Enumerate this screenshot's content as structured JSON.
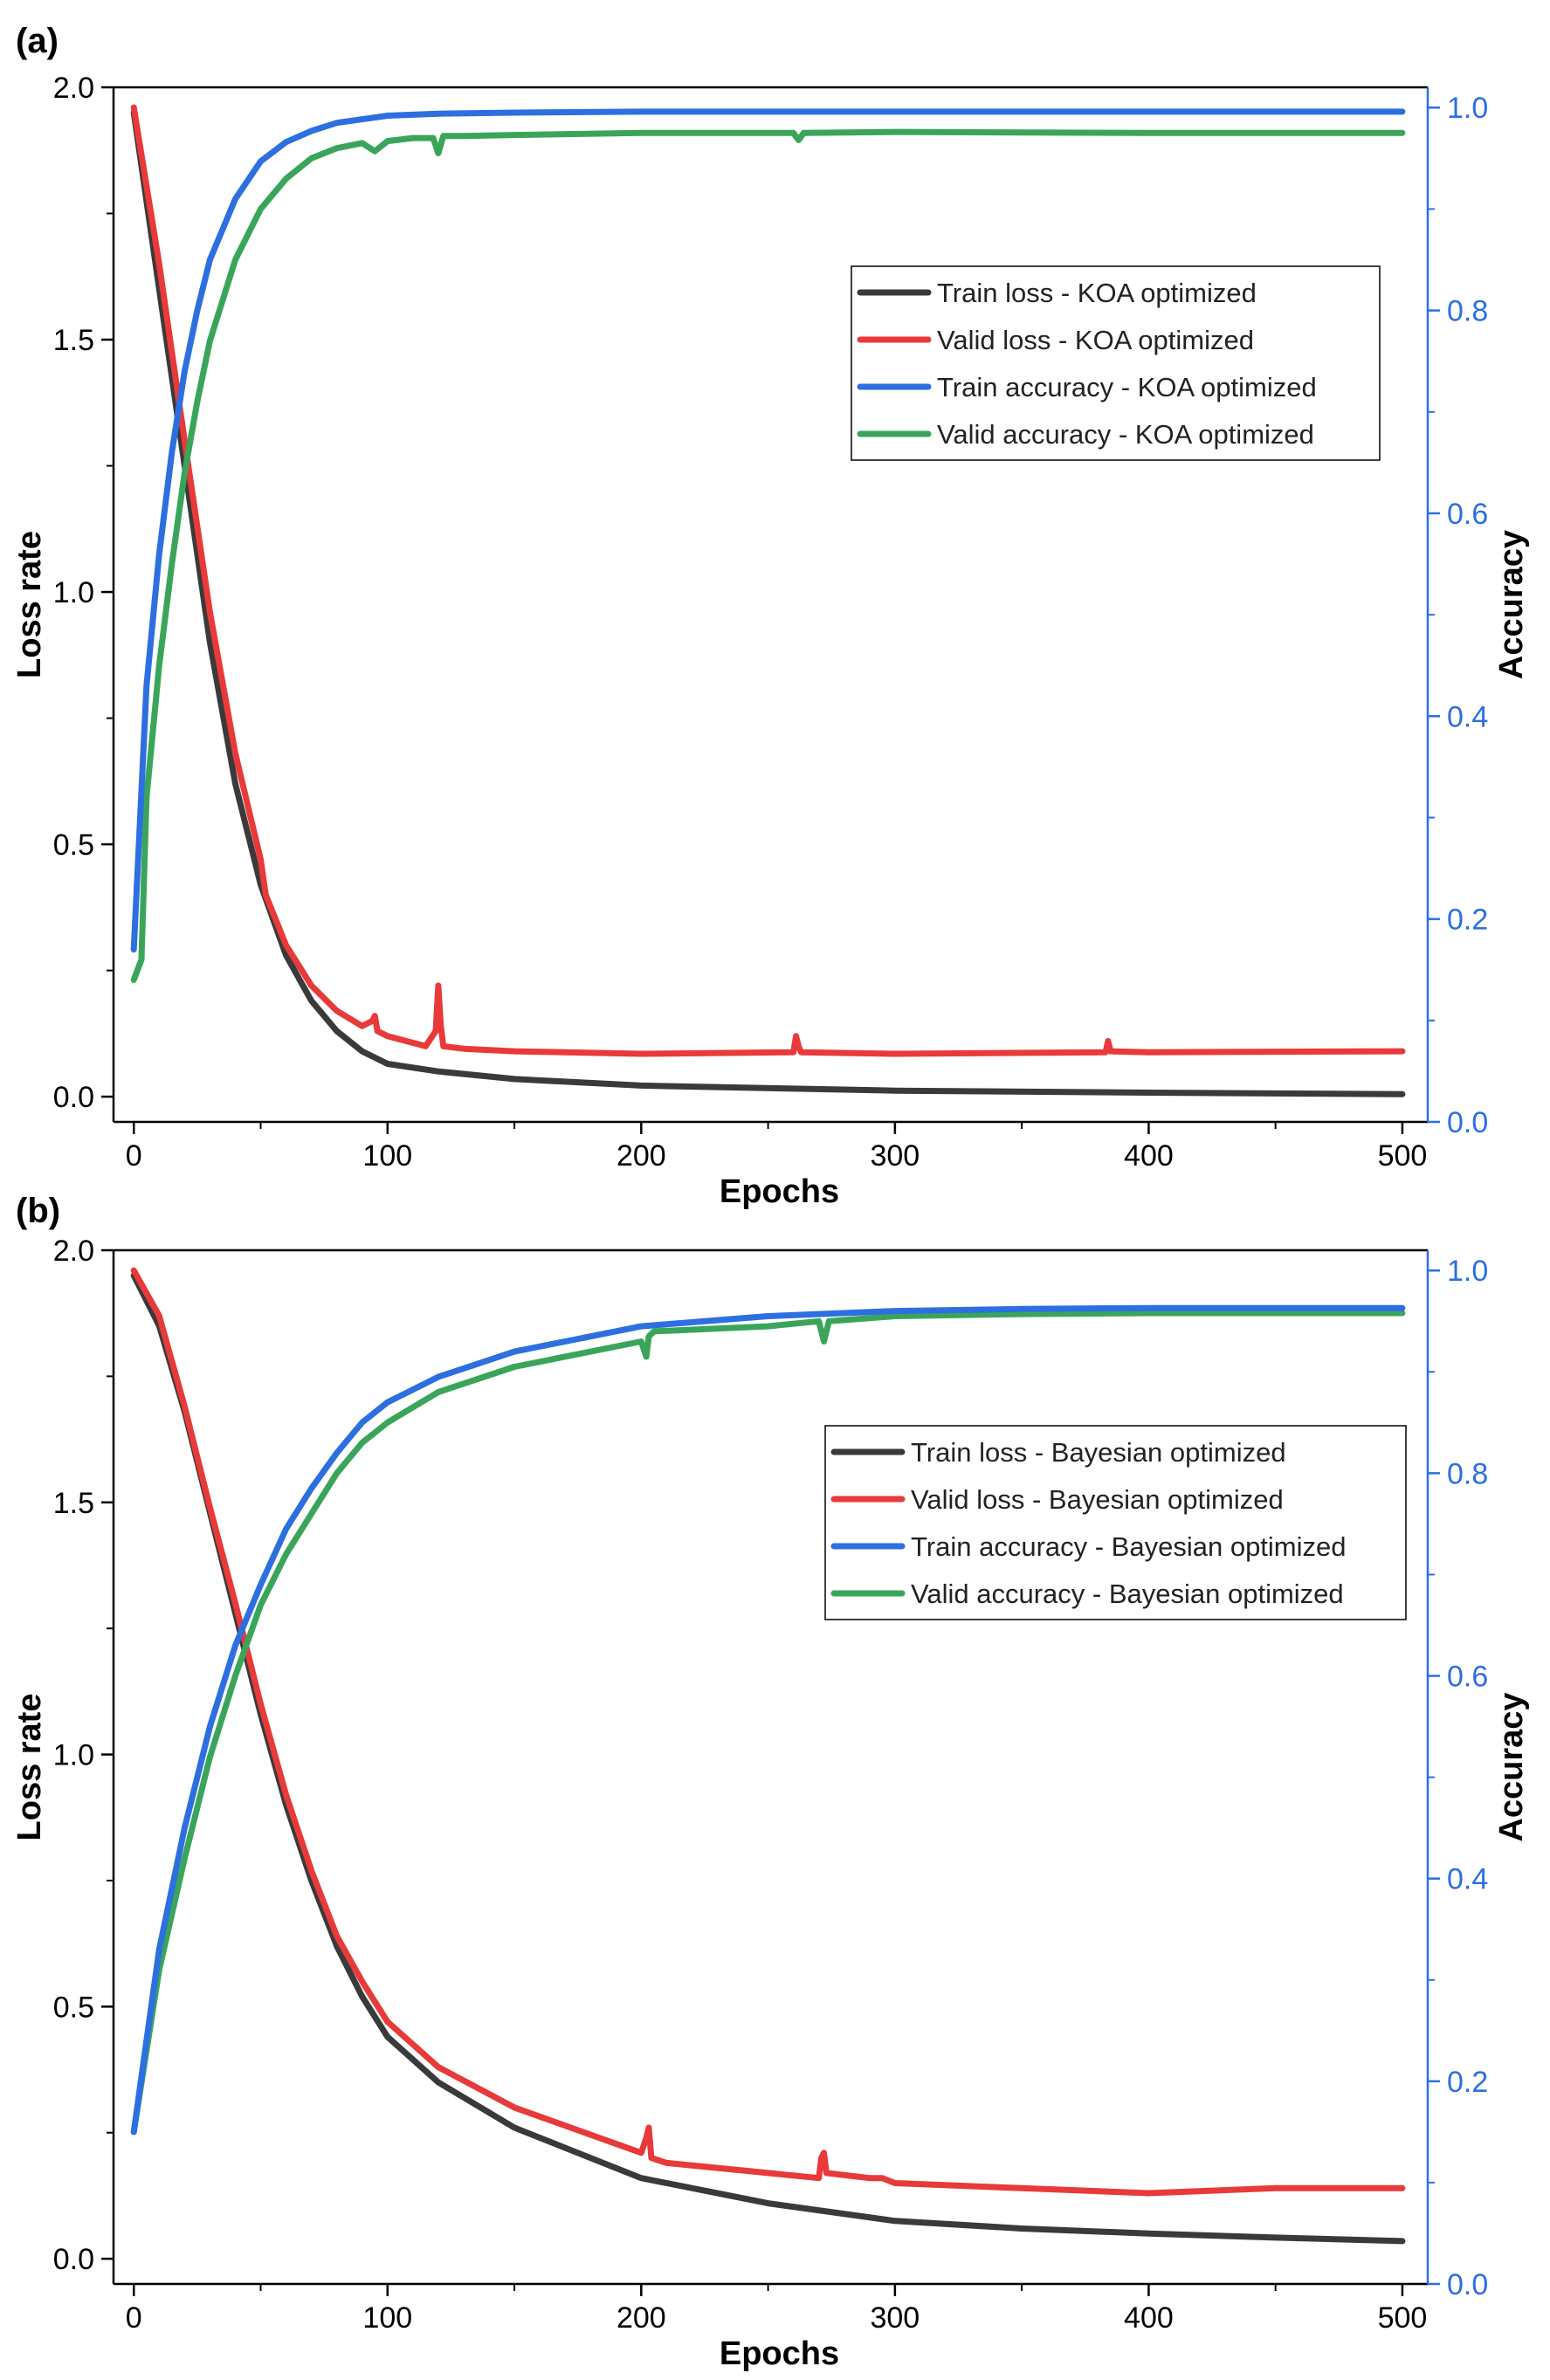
{
  "figure": {
    "panels": [
      "(a)",
      "(b)"
    ]
  },
  "colors": {
    "train_loss": "#3a3a3a",
    "valid_loss": "#e83a3a",
    "train_acc": "#2d6fe0",
    "valid_acc": "#3aa55a",
    "right_axis": "#2d6fe0",
    "axis": "#000000"
  },
  "chart_data": [
    {
      "type": "line",
      "panel_label": "(a)",
      "title": "",
      "xlabel": "Epochs",
      "ylabel": "Loss rate",
      "y2label": "Accuracy",
      "xlim": [
        -8,
        510
      ],
      "ylim": [
        -0.05,
        2.0
      ],
      "y2lim": [
        0.0,
        1.02
      ],
      "xticks": [
        0,
        100,
        200,
        300,
        400,
        500
      ],
      "xtick_labels": [
        "0",
        "100",
        "200",
        "300",
        "400",
        "500"
      ],
      "yticks": [
        0.0,
        0.5,
        1.0,
        1.5,
        2.0
      ],
      "ytick_labels": [
        "0.0",
        "0.5",
        "1.0",
        "1.5",
        "2.0"
      ],
      "y2ticks": [
        0.0,
        0.2,
        0.4,
        0.6,
        0.8,
        1.0
      ],
      "y2tick_labels": [
        "0.0",
        "0.2",
        "0.4",
        "0.6",
        "0.8",
        "1.0"
      ],
      "legend_position": "upper-right",
      "series": [
        {
          "name": "Train loss - KOA optimized",
          "key": "train_loss",
          "axis": "left",
          "x": [
            0,
            10,
            20,
            30,
            40,
            50,
            60,
            70,
            80,
            90,
            100,
            120,
            150,
            200,
            300,
            400,
            500
          ],
          "y": [
            1.95,
            1.6,
            1.25,
            0.9,
            0.62,
            0.42,
            0.28,
            0.19,
            0.13,
            0.09,
            0.065,
            0.05,
            0.035,
            0.022,
            0.012,
            0.008,
            0.005
          ]
        },
        {
          "name": "Valid loss - KOA optimized",
          "key": "valid_loss",
          "axis": "left",
          "x": [
            0,
            10,
            20,
            30,
            40,
            50,
            52,
            60,
            70,
            80,
            90,
            94,
            95,
            96,
            100,
            115,
            119,
            120,
            121,
            122,
            130,
            150,
            200,
            260,
            261,
            262,
            263,
            300,
            383,
            384,
            385,
            400,
            500
          ],
          "y": [
            1.96,
            1.65,
            1.3,
            0.96,
            0.68,
            0.47,
            0.4,
            0.3,
            0.22,
            0.17,
            0.14,
            0.15,
            0.16,
            0.13,
            0.12,
            0.1,
            0.13,
            0.22,
            0.14,
            0.1,
            0.095,
            0.09,
            0.085,
            0.088,
            0.12,
            0.1,
            0.088,
            0.085,
            0.088,
            0.11,
            0.09,
            0.088,
            0.09
          ]
        },
        {
          "name": "Train accuracy - KOA optimized",
          "key": "train_acc",
          "axis": "right",
          "x": [
            0,
            5,
            10,
            15,
            20,
            25,
            30,
            40,
            50,
            60,
            70,
            80,
            100,
            120,
            150,
            200,
            300,
            400,
            500
          ],
          "y": [
            0.17,
            0.43,
            0.56,
            0.66,
            0.74,
            0.8,
            0.85,
            0.91,
            0.947,
            0.966,
            0.977,
            0.985,
            0.992,
            0.994,
            0.995,
            0.996,
            0.996,
            0.996,
            0.996
          ]
        },
        {
          "name": "Valid accuracy - KOA optimized",
          "key": "valid_acc",
          "axis": "right",
          "x": [
            0,
            3,
            5,
            10,
            15,
            20,
            25,
            30,
            40,
            50,
            60,
            70,
            80,
            90,
            95,
            100,
            110,
            118,
            120,
            122,
            130,
            150,
            200,
            260,
            262,
            264,
            300,
            400,
            500
          ],
          "y": [
            0.14,
            0.16,
            0.32,
            0.45,
            0.55,
            0.64,
            0.71,
            0.77,
            0.85,
            0.9,
            0.93,
            0.95,
            0.96,
            0.965,
            0.957,
            0.967,
            0.97,
            0.97,
            0.955,
            0.972,
            0.972,
            0.973,
            0.975,
            0.975,
            0.968,
            0.975,
            0.976,
            0.975,
            0.975
          ]
        }
      ]
    },
    {
      "type": "line",
      "panel_label": "(b)",
      "title": "",
      "xlabel": "Epochs",
      "ylabel": "Loss rate",
      "y2label": "Accuracy",
      "xlim": [
        -8,
        510
      ],
      "ylim": [
        -0.05,
        2.0
      ],
      "y2lim": [
        0.0,
        1.02
      ],
      "xticks": [
        0,
        100,
        200,
        300,
        400,
        500
      ],
      "xtick_labels": [
        "0",
        "100",
        "200",
        "300",
        "400",
        "500"
      ],
      "yticks": [
        0.0,
        0.5,
        1.0,
        1.5,
        2.0
      ],
      "ytick_labels": [
        "0.0",
        "0.5",
        "1.0",
        "1.5",
        "2.0"
      ],
      "y2ticks": [
        0.0,
        0.2,
        0.4,
        0.6,
        0.8,
        1.0
      ],
      "y2tick_labels": [
        "0.0",
        "0.2",
        "0.4",
        "0.6",
        "0.8",
        "1.0"
      ],
      "legend_position": "center-right",
      "series": [
        {
          "name": "Train loss - Bayesian optimized",
          "key": "train_loss",
          "axis": "left",
          "x": [
            0,
            10,
            20,
            30,
            40,
            50,
            60,
            70,
            80,
            90,
            100,
            120,
            150,
            200,
            250,
            300,
            350,
            400,
            450,
            500
          ],
          "y": [
            1.95,
            1.85,
            1.68,
            1.48,
            1.28,
            1.08,
            0.9,
            0.75,
            0.62,
            0.52,
            0.44,
            0.35,
            0.26,
            0.16,
            0.11,
            0.075,
            0.06,
            0.05,
            0.042,
            0.035
          ]
        },
        {
          "name": "Valid loss - Bayesian optimized",
          "key": "valid_loss",
          "axis": "left",
          "x": [
            0,
            10,
            20,
            30,
            40,
            50,
            60,
            70,
            80,
            90,
            100,
            120,
            150,
            200,
            202,
            203,
            204,
            210,
            250,
            270,
            271,
            272,
            273,
            290,
            295,
            300,
            350,
            400,
            450,
            500
          ],
          "y": [
            1.96,
            1.87,
            1.69,
            1.49,
            1.3,
            1.1,
            0.92,
            0.77,
            0.64,
            0.55,
            0.47,
            0.38,
            0.3,
            0.21,
            0.24,
            0.26,
            0.2,
            0.19,
            0.17,
            0.16,
            0.2,
            0.21,
            0.17,
            0.16,
            0.16,
            0.15,
            0.14,
            0.13,
            0.14,
            0.14
          ]
        },
        {
          "name": "Train accuracy - Bayesian optimized",
          "key": "train_acc",
          "axis": "right",
          "x": [
            0,
            10,
            20,
            30,
            40,
            50,
            60,
            70,
            80,
            90,
            100,
            120,
            150,
            200,
            250,
            300,
            350,
            400,
            450,
            500
          ],
          "y": [
            0.15,
            0.33,
            0.45,
            0.55,
            0.63,
            0.69,
            0.745,
            0.785,
            0.82,
            0.85,
            0.87,
            0.895,
            0.92,
            0.945,
            0.955,
            0.96,
            0.962,
            0.963,
            0.963,
            0.963
          ]
        },
        {
          "name": "Valid accuracy - Bayesian optimized",
          "key": "valid_acc",
          "axis": "right",
          "x": [
            0,
            10,
            20,
            30,
            40,
            50,
            60,
            70,
            80,
            90,
            100,
            120,
            150,
            200,
            202,
            203,
            205,
            250,
            270,
            272,
            274,
            300,
            350,
            400,
            450,
            500
          ],
          "y": [
            0.15,
            0.31,
            0.42,
            0.52,
            0.6,
            0.67,
            0.72,
            0.76,
            0.8,
            0.83,
            0.85,
            0.88,
            0.905,
            0.93,
            0.915,
            0.935,
            0.94,
            0.945,
            0.95,
            0.93,
            0.95,
            0.955,
            0.957,
            0.958,
            0.958,
            0.958
          ]
        }
      ]
    }
  ]
}
